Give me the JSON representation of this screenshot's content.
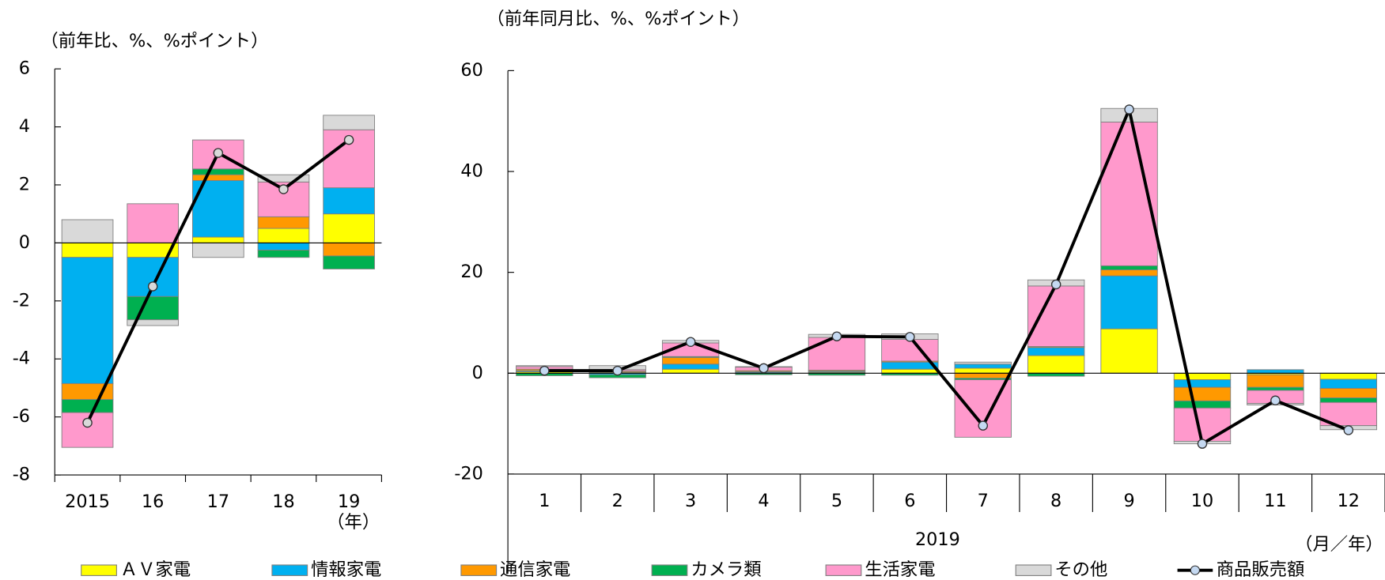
{
  "chart_data": [
    {
      "type": "bar",
      "stacked": true,
      "ylabel": "（前年比、%、%ポイント）",
      "xlabel": "（年）",
      "categories": [
        "2015",
        "16",
        "17",
        "18",
        "19"
      ],
      "ylim": [
        -8,
        6
      ],
      "yticks": [
        -8,
        -6,
        -4,
        -2,
        0,
        2,
        4,
        6
      ],
      "series": [
        {
          "name": "ＡＶ家電",
          "color": "#ffff00",
          "values": [
            -0.5,
            -0.5,
            0.2,
            0.5,
            1.0
          ]
        },
        {
          "name": "情報家電",
          "color": "#00b0f0",
          "values": [
            -4.35,
            -1.35,
            1.95,
            -0.25,
            0.9
          ]
        },
        {
          "name": "通信家電",
          "color": "#ff9900",
          "values": [
            -0.55,
            0,
            0.2,
            0.4,
            -0.45
          ]
        },
        {
          "name": "カメラ類",
          "color": "#00b050",
          "values": [
            -0.45,
            -0.8,
            0.2,
            -0.25,
            -0.45
          ]
        },
        {
          "name": "生活家電",
          "color": "#ff99cc",
          "values": [
            -1.2,
            1.35,
            1.0,
            1.2,
            2.0
          ]
        },
        {
          "name": "その他",
          "color": "#d9d9d9",
          "values": [
            0.8,
            -0.2,
            -0.5,
            0.25,
            0.5
          ]
        },
        {
          "name": "商品販売額",
          "type": "line",
          "color": "#000000",
          "marker_color": "#d9d9d9",
          "values": [
            -6.2,
            -1.5,
            3.1,
            1.85,
            3.55
          ]
        }
      ]
    },
    {
      "type": "bar",
      "stacked": true,
      "ylabel": "（前年同月比、%、%ポイント）",
      "xlabel": "（月／年）",
      "group_label": "2019",
      "categories": [
        "1",
        "2",
        "3",
        "4",
        "5",
        "6",
        "7",
        "8",
        "9",
        "10",
        "11",
        "12"
      ],
      "ylim": [
        -20,
        60
      ],
      "yticks": [
        -20,
        0,
        20,
        40,
        60
      ],
      "series": [
        {
          "name": "ＡＶ家電",
          "color": "#ffff00",
          "values": [
            0.3,
            0.2,
            0.8,
            0.1,
            0.2,
            0.8,
            1.0,
            3.5,
            8.8,
            -1.3,
            -0.3,
            -1.2
          ]
        },
        {
          "name": "情報家電",
          "color": "#00b0f0",
          "values": [
            0.2,
            -0.3,
            1.0,
            0.2,
            0.2,
            1.4,
            0.8,
            1.6,
            10.5,
            -1.5,
            0.7,
            -1.8
          ]
        },
        {
          "name": "通信家電",
          "color": "#ff9900",
          "values": [
            0.3,
            0.2,
            1.3,
            0.2,
            0.2,
            0.2,
            -1.0,
            0.2,
            1.2,
            -2.7,
            -2.5,
            -1.9
          ]
        },
        {
          "name": "カメラ類",
          "color": "#00b050",
          "values": [
            -0.5,
            -0.6,
            0.2,
            -0.3,
            -0.4,
            -0.4,
            -0.3,
            -0.6,
            0.8,
            -1.4,
            -0.6,
            -0.9
          ]
        },
        {
          "name": "生活家電",
          "color": "#ff99cc",
          "values": [
            0.5,
            0.3,
            2.7,
            0.7,
            6.5,
            4.3,
            -11.4,
            12.0,
            28.5,
            -6.6,
            -2.6,
            -4.6
          ]
        },
        {
          "name": "その他",
          "color": "#d9d9d9",
          "values": [
            0.2,
            0.8,
            0.5,
            0.1,
            0.6,
            1.1,
            0.4,
            1.2,
            2.7,
            -0.5,
            -0.3,
            -0.8
          ]
        },
        {
          "name": "商品販売額",
          "type": "line",
          "color": "#000000",
          "marker_color": "#c5d9f1",
          "values": [
            0.5,
            0.5,
            6.2,
            1.0,
            7.3,
            7.2,
            -10.4,
            17.6,
            52.3,
            -14.0,
            -5.4,
            -11.3
          ]
        }
      ]
    }
  ]
}
